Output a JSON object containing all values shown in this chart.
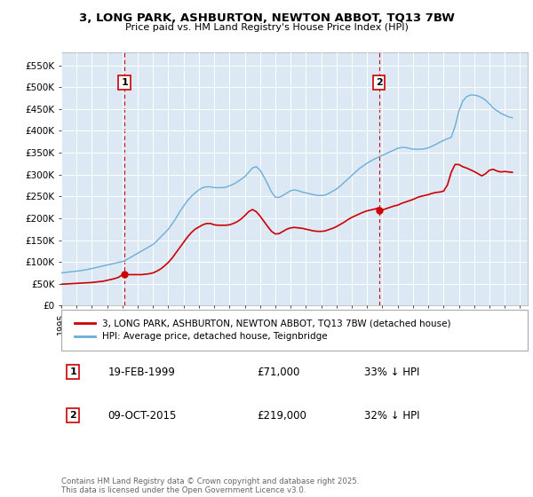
{
  "title": "3, LONG PARK, ASHBURTON, NEWTON ABBOT, TQ13 7BW",
  "subtitle": "Price paid vs. HM Land Registry's House Price Index (HPI)",
  "ylabel_ticks": [
    "£0",
    "£50K",
    "£100K",
    "£150K",
    "£200K",
    "£250K",
    "£300K",
    "£350K",
    "£400K",
    "£450K",
    "£500K",
    "£550K"
  ],
  "ylim": [
    0,
    580000
  ],
  "xlim_start": 1995.0,
  "xlim_end": 2025.5,
  "chart_bg": "#dde8f5",
  "fig_bg": "#ffffff",
  "legend_line1": "3, LONG PARK, ASHBURTON, NEWTON ABBOT, TQ13 7BW (detached house)",
  "legend_line2": "HPI: Average price, detached house, Teignbridge",
  "annotation1_label": "1",
  "annotation1_date": "19-FEB-1999",
  "annotation1_price": "£71,000",
  "annotation1_hpi": "33% ↓ HPI",
  "annotation2_label": "2",
  "annotation2_date": "09-OCT-2015",
  "annotation2_price": "£219,000",
  "annotation2_hpi": "32% ↓ HPI",
  "footer": "Contains HM Land Registry data © Crown copyright and database right 2025.\nThis data is licensed under the Open Government Licence v3.0.",
  "color_red": "#cc0000",
  "color_blue": "#6baed6",
  "color_vline": "#cc0000",
  "purchase1_year": 1999.13,
  "purchase2_year": 2015.77,
  "purchase1_price": 71000,
  "purchase2_price": 219000,
  "hpi_x": [
    1995.0,
    1995.25,
    1995.5,
    1995.75,
    1996.0,
    1996.25,
    1996.5,
    1996.75,
    1997.0,
    1997.25,
    1997.5,
    1997.75,
    1998.0,
    1998.25,
    1998.5,
    1998.75,
    1999.0,
    1999.25,
    1999.5,
    1999.75,
    2000.0,
    2000.25,
    2000.5,
    2000.75,
    2001.0,
    2001.25,
    2001.5,
    2001.75,
    2002.0,
    2002.25,
    2002.5,
    2002.75,
    2003.0,
    2003.25,
    2003.5,
    2003.75,
    2004.0,
    2004.25,
    2004.5,
    2004.75,
    2005.0,
    2005.25,
    2005.5,
    2005.75,
    2006.0,
    2006.25,
    2006.5,
    2006.75,
    2007.0,
    2007.25,
    2007.5,
    2007.75,
    2008.0,
    2008.25,
    2008.5,
    2008.75,
    2009.0,
    2009.25,
    2009.5,
    2009.75,
    2010.0,
    2010.25,
    2010.5,
    2010.75,
    2011.0,
    2011.25,
    2011.5,
    2011.75,
    2012.0,
    2012.25,
    2012.5,
    2012.75,
    2013.0,
    2013.25,
    2013.5,
    2013.75,
    2014.0,
    2014.25,
    2014.5,
    2014.75,
    2015.0,
    2015.25,
    2015.5,
    2015.75,
    2016.0,
    2016.25,
    2016.5,
    2016.75,
    2017.0,
    2017.25,
    2017.5,
    2017.75,
    2018.0,
    2018.25,
    2018.5,
    2018.75,
    2019.0,
    2019.25,
    2019.5,
    2019.75,
    2020.0,
    2020.25,
    2020.5,
    2020.75,
    2021.0,
    2021.25,
    2021.5,
    2021.75,
    2022.0,
    2022.25,
    2022.5,
    2022.75,
    2023.0,
    2023.25,
    2023.5,
    2023.75,
    2024.0,
    2024.25,
    2024.5
  ],
  "hpi_y": [
    75000,
    76000,
    77000,
    78000,
    79000,
    80000,
    81500,
    83000,
    85000,
    87000,
    89000,
    91000,
    93000,
    95000,
    97000,
    99000,
    101000,
    105000,
    110000,
    115000,
    120000,
    125000,
    130000,
    135000,
    140000,
    148000,
    157000,
    166000,
    175000,
    187000,
    200000,
    215000,
    228000,
    240000,
    250000,
    258000,
    265000,
    270000,
    272000,
    272000,
    270000,
    270000,
    270000,
    271000,
    274000,
    278000,
    283000,
    289000,
    295000,
    305000,
    315000,
    318000,
    310000,
    295000,
    278000,
    260000,
    248000,
    248000,
    252000,
    258000,
    263000,
    265000,
    263000,
    260000,
    258000,
    256000,
    254000,
    252000,
    252000,
    253000,
    257000,
    262000,
    267000,
    274000,
    282000,
    290000,
    298000,
    306000,
    314000,
    320000,
    326000,
    331000,
    336000,
    340000,
    344000,
    348000,
    352000,
    356000,
    360000,
    362000,
    362000,
    360000,
    358000,
    358000,
    358000,
    359000,
    361000,
    365000,
    369000,
    374000,
    378000,
    382000,
    385000,
    410000,
    445000,
    468000,
    478000,
    482000,
    482000,
    480000,
    476000,
    470000,
    462000,
    452000,
    446000,
    440000,
    436000,
    432000,
    430000
  ],
  "red_x": [
    1995.0,
    1995.25,
    1995.5,
    1995.75,
    1996.0,
    1996.25,
    1996.5,
    1996.75,
    1997.0,
    1997.25,
    1997.5,
    1997.75,
    1998.0,
    1998.25,
    1998.5,
    1998.75,
    1999.0,
    1999.25,
    1999.5,
    1999.75,
    2000.0,
    2000.25,
    2000.5,
    2000.75,
    2001.0,
    2001.25,
    2001.5,
    2001.75,
    2002.0,
    2002.25,
    2002.5,
    2002.75,
    2003.0,
    2003.25,
    2003.5,
    2003.75,
    2004.0,
    2004.25,
    2004.5,
    2004.75,
    2005.0,
    2005.25,
    2005.5,
    2005.75,
    2006.0,
    2006.25,
    2006.5,
    2006.75,
    2007.0,
    2007.25,
    2007.5,
    2007.75,
    2008.0,
    2008.25,
    2008.5,
    2008.75,
    2009.0,
    2009.25,
    2009.5,
    2009.75,
    2010.0,
    2010.25,
    2010.5,
    2010.75,
    2011.0,
    2011.25,
    2011.5,
    2011.75,
    2012.0,
    2012.25,
    2012.5,
    2012.75,
    2013.0,
    2013.25,
    2013.5,
    2013.75,
    2014.0,
    2014.25,
    2014.5,
    2014.75,
    2015.0,
    2015.25,
    2015.5,
    2015.75,
    2016.0,
    2016.25,
    2016.5,
    2016.75,
    2017.0,
    2017.25,
    2017.5,
    2017.75,
    2018.0,
    2018.25,
    2018.5,
    2018.75,
    2019.0,
    2019.25,
    2019.5,
    2019.75,
    2020.0,
    2020.25,
    2020.5,
    2020.75,
    2021.0,
    2021.25,
    2021.5,
    2021.75,
    2022.0,
    2022.25,
    2022.5,
    2022.75,
    2023.0,
    2023.25,
    2023.5,
    2023.75,
    2024.0,
    2024.25,
    2024.5
  ],
  "red_y": [
    49000,
    49500,
    50000,
    50500,
    51000,
    51500,
    52000,
    52500,
    53000,
    54000,
    55000,
    56000,
    58000,
    60000,
    62000,
    65000,
    71000,
    71000,
    71000,
    71000,
    71000,
    71000,
    72000,
    73000,
    75000,
    79000,
    84000,
    91000,
    99000,
    109000,
    121000,
    133000,
    145000,
    157000,
    167000,
    175000,
    180000,
    185000,
    188000,
    188000,
    185000,
    184000,
    184000,
    184000,
    185000,
    188000,
    192000,
    198000,
    206000,
    215000,
    220000,
    215000,
    205000,
    193000,
    181000,
    170000,
    164000,
    165000,
    170000,
    175000,
    178000,
    179000,
    178000,
    177000,
    175000,
    173000,
    171000,
    170000,
    170000,
    171000,
    174000,
    177000,
    181000,
    186000,
    191000,
    197000,
    202000,
    206000,
    210000,
    214000,
    217000,
    219000,
    221000,
    224000,
    219000,
    222000,
    225000,
    228000,
    230000,
    234000,
    237000,
    240000,
    243000,
    247000,
    250000,
    252000,
    254000,
    257000,
    259000,
    260000,
    262000,
    276000,
    305000,
    323000,
    323000,
    318000,
    315000,
    311000,
    307000,
    302000,
    297000,
    302000,
    310000,
    312000,
    308000,
    306000,
    307000,
    306000,
    305000
  ]
}
